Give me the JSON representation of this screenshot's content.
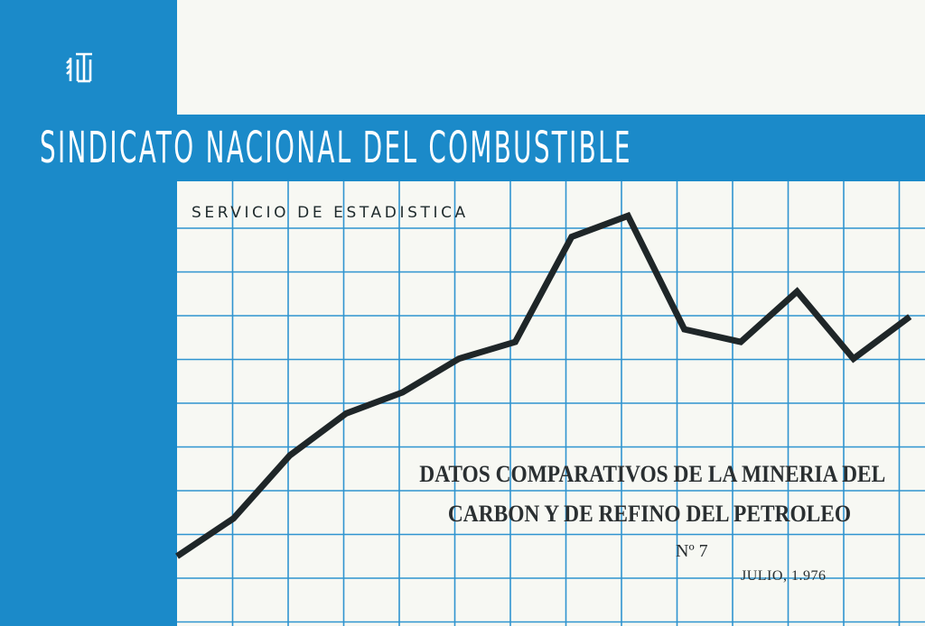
{
  "colors": {
    "blue": "#1b8ac9",
    "grid": "#2f94d0",
    "paper": "#f7f8f3",
    "line": "#1f2628"
  },
  "header": {
    "logo_icon": "sindicato-emblem-icon",
    "title": "SINDICATO NACIONAL DEL COMBUSTIBLE",
    "service": "SERVICIO DE ESTADISTICA"
  },
  "document": {
    "title_line1": "DATOS COMPARATIVOS DE LA MINERIA DEL",
    "title_line2": "CARBON Y DE REFINO DEL PETROLEO",
    "number": "Nº 7",
    "date": "JULIO, 1.976"
  },
  "chart_data": {
    "type": "line",
    "title": "",
    "xlabel": "",
    "ylabel": "",
    "x": [
      0,
      1,
      2,
      3,
      4,
      5,
      6,
      7,
      8,
      9,
      10,
      11,
      12,
      13
    ],
    "series": [
      {
        "values": [
          1.1,
          2.0,
          3.5,
          4.5,
          5.0,
          5.8,
          6.2,
          8.7,
          9.2,
          6.5,
          6.2,
          7.4,
          5.8,
          6.8
        ]
      }
    ],
    "grid": true
  }
}
